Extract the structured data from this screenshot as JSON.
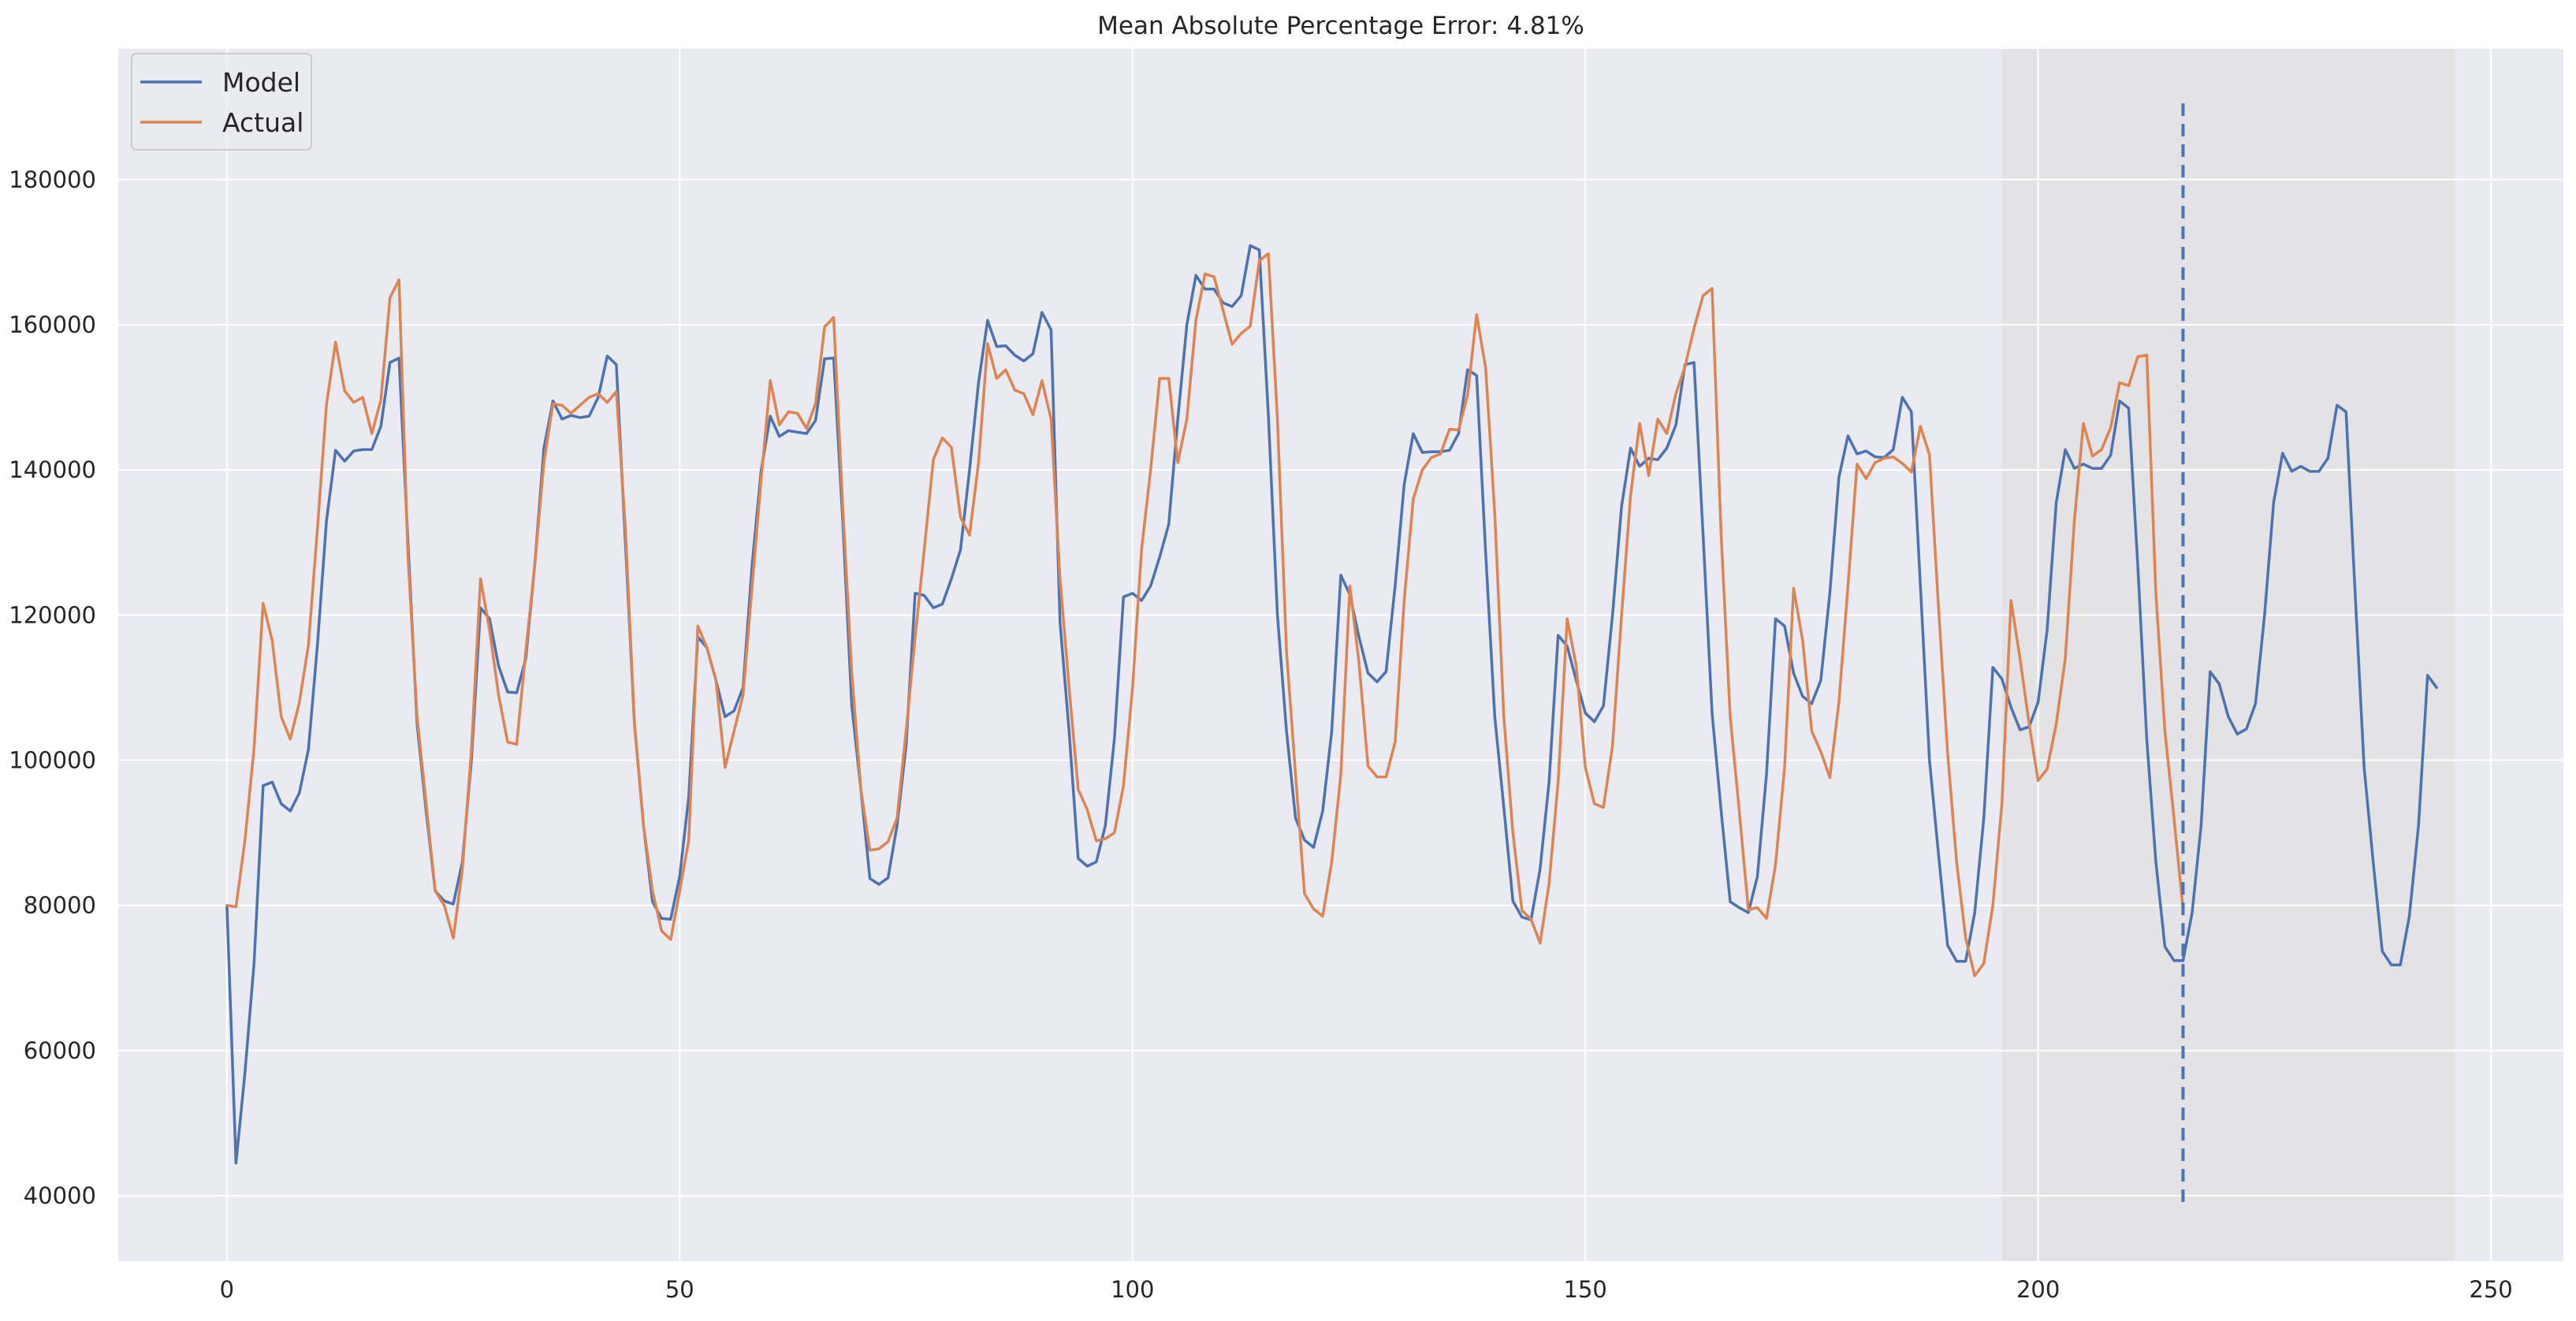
{
  "chart_data": {
    "type": "line",
    "title": "Mean Absolute Percentage Error: 4.81%",
    "xlabel": "",
    "ylabel": "",
    "xlim": [
      -12,
      258
    ],
    "ylim": [
      31000,
      198000
    ],
    "xticks": [
      0,
      50,
      100,
      150,
      200,
      250
    ],
    "yticks": [
      40000,
      60000,
      80000,
      100000,
      120000,
      140000,
      160000,
      180000
    ],
    "grid": true,
    "legend": "top-left",
    "shaded_region": [
      196,
      246
    ],
    "vline": {
      "x": 216,
      "ymin": 38500,
      "ymax": 190500
    },
    "colors": {
      "background": "#eaeaf2",
      "grid": "#ffffff",
      "shade": "#dcdcdc",
      "model": "#4c72b0",
      "actual": "#dd8452"
    },
    "series": [
      {
        "name": "Model",
        "values": [
          80000,
          44500,
          57000,
          72000,
          96500,
          97000,
          94000,
          93000,
          95500,
          101500,
          116000,
          133000,
          142700,
          141200,
          142600,
          142800,
          142800,
          146000,
          154800,
          155400,
          130000,
          105000,
          93000,
          82000,
          80600,
          80200,
          86000,
          100000,
          121000,
          119500,
          113000,
          109400,
          109300,
          114000,
          127000,
          143000,
          149500,
          147000,
          147500,
          147200,
          147400,
          150000,
          155700,
          154500,
          130000,
          105000,
          91000,
          80500,
          78200,
          78100,
          84000,
          95000,
          117000,
          115500,
          111000,
          106000,
          106800,
          110000,
          127000,
          140000,
          147400,
          144600,
          145400,
          145200,
          145000,
          146800,
          155300,
          155400,
          133000,
          107500,
          96000,
          83700,
          82900,
          83800,
          91000,
          102000,
          123000,
          122700,
          121000,
          121500,
          125000,
          129000,
          140000,
          152000,
          160600,
          157000,
          157100,
          155800,
          155000,
          156000,
          161700,
          159300,
          119000,
          104000,
          86500,
          85400,
          86000,
          91000,
          103000,
          122500,
          123000,
          122000,
          124000,
          128000,
          132500,
          147000,
          160000,
          166800,
          164900,
          164900,
          163000,
          162500,
          164000,
          170900,
          170300,
          147500,
          120000,
          104000,
          92000,
          89000,
          88000,
          93000,
          104000,
          125500,
          122800,
          117000,
          112000,
          110800,
          112200,
          124000,
          138000,
          145000,
          142400,
          142500,
          142500,
          142700,
          145000,
          153800,
          153000,
          128500,
          106000,
          93500,
          80600,
          78400,
          78000,
          85000,
          97000,
          117200,
          115700,
          111000,
          106500,
          105300,
          107500,
          120000,
          135000,
          143000,
          140500,
          141600,
          141400,
          143000,
          146200,
          154500,
          154800,
          131000,
          106500,
          93000,
          80500,
          79700,
          79000,
          84000,
          98000,
          119500,
          118500,
          112000,
          108800,
          107800,
          111000,
          123000,
          139000,
          144700,
          142200,
          142600,
          141800,
          141700,
          142800,
          150000,
          148000,
          124000,
          100000,
          87000,
          74500,
          72300,
          72300,
          79000,
          92000,
          112800,
          111200,
          107300,
          104200,
          104600,
          108000,
          118000,
          135500,
          142800,
          140200,
          140800,
          140200,
          140200,
          142000,
          149500,
          148500,
          127000,
          102800,
          86000,
          74300,
          72400,
          72400,
          79000,
          91000,
          112200,
          110500,
          106000,
          103600,
          104300,
          107800,
          120000,
          135500,
          142300,
          139800,
          140500,
          139800,
          139800,
          141600,
          148900,
          148000,
          123000,
          99000,
          86000,
          73700,
          71800,
          71800,
          78600,
          91000,
          111700,
          110000
        ]
      },
      {
        "name": "Actual",
        "values": [
          80000,
          79800,
          89000,
          101700,
          121600,
          116500,
          106000,
          102900,
          108000,
          115900,
          132000,
          149000,
          157600,
          150900,
          149300,
          150000,
          145000,
          149600,
          163700,
          166200,
          128000,
          106000,
          94000,
          82000,
          80000,
          75500,
          85000,
          101500,
          125000,
          118000,
          109000,
          102500,
          102200,
          115000,
          127000,
          141000,
          149100,
          148900,
          147800,
          148900,
          150000,
          150500,
          149300,
          150800,
          132000,
          105000,
          91000,
          82000,
          76500,
          75300,
          82000,
          89000,
          118500,
          115500,
          111000,
          99000,
          104000,
          109000,
          124000,
          138800,
          152300,
          146200,
          148000,
          147800,
          145700,
          149100,
          159700,
          161000,
          135000,
          112000,
          96000,
          87600,
          87800,
          88800,
          92000,
          104000,
          117000,
          129000,
          141400,
          144400,
          143100,
          133500,
          131000,
          141000,
          157400,
          152600,
          153800,
          151000,
          150500,
          147600,
          152300,
          147000,
          125000,
          110000,
          96000,
          93200,
          88900,
          89200,
          90000,
          96500,
          110000,
          129000,
          140000,
          152600,
          152600,
          141000,
          147000,
          160600,
          167000,
          166600,
          162000,
          157300,
          158800,
          159800,
          168800,
          169800,
          147000,
          115000,
          98000,
          81600,
          79500,
          78500,
          86000,
          98000,
          124000,
          113500,
          99200,
          97700,
          97700,
          102500,
          122000,
          136000,
          140000,
          141700,
          142200,
          145600,
          145500,
          150300,
          161400,
          154000,
          134000,
          106000,
          90000,
          79300,
          78100,
          74800,
          83000,
          97000,
          119500,
          113000,
          99000,
          94000,
          93500,
          102000,
          120000,
          136500,
          146400,
          139200,
          147000,
          145000,
          150500,
          154200,
          159500,
          164000,
          165000,
          131000,
          106000,
          93000,
          79400,
          79700,
          78200,
          85600,
          99000,
          123700,
          116500,
          104000,
          101200,
          97600,
          108000,
          124000,
          140800,
          138800,
          141000,
          141600,
          141800,
          140900,
          139700,
          146000,
          142100,
          121000,
          101000,
          86000,
          75500,
          70300,
          72000,
          80000,
          94000,
          122000,
          114000,
          105000,
          97200,
          98800,
          105000,
          114000,
          133000,
          146400,
          141900,
          142800,
          145800,
          152000,
          151600,
          155600,
          155800,
          123000,
          104000,
          92000,
          79500
        ]
      }
    ]
  }
}
